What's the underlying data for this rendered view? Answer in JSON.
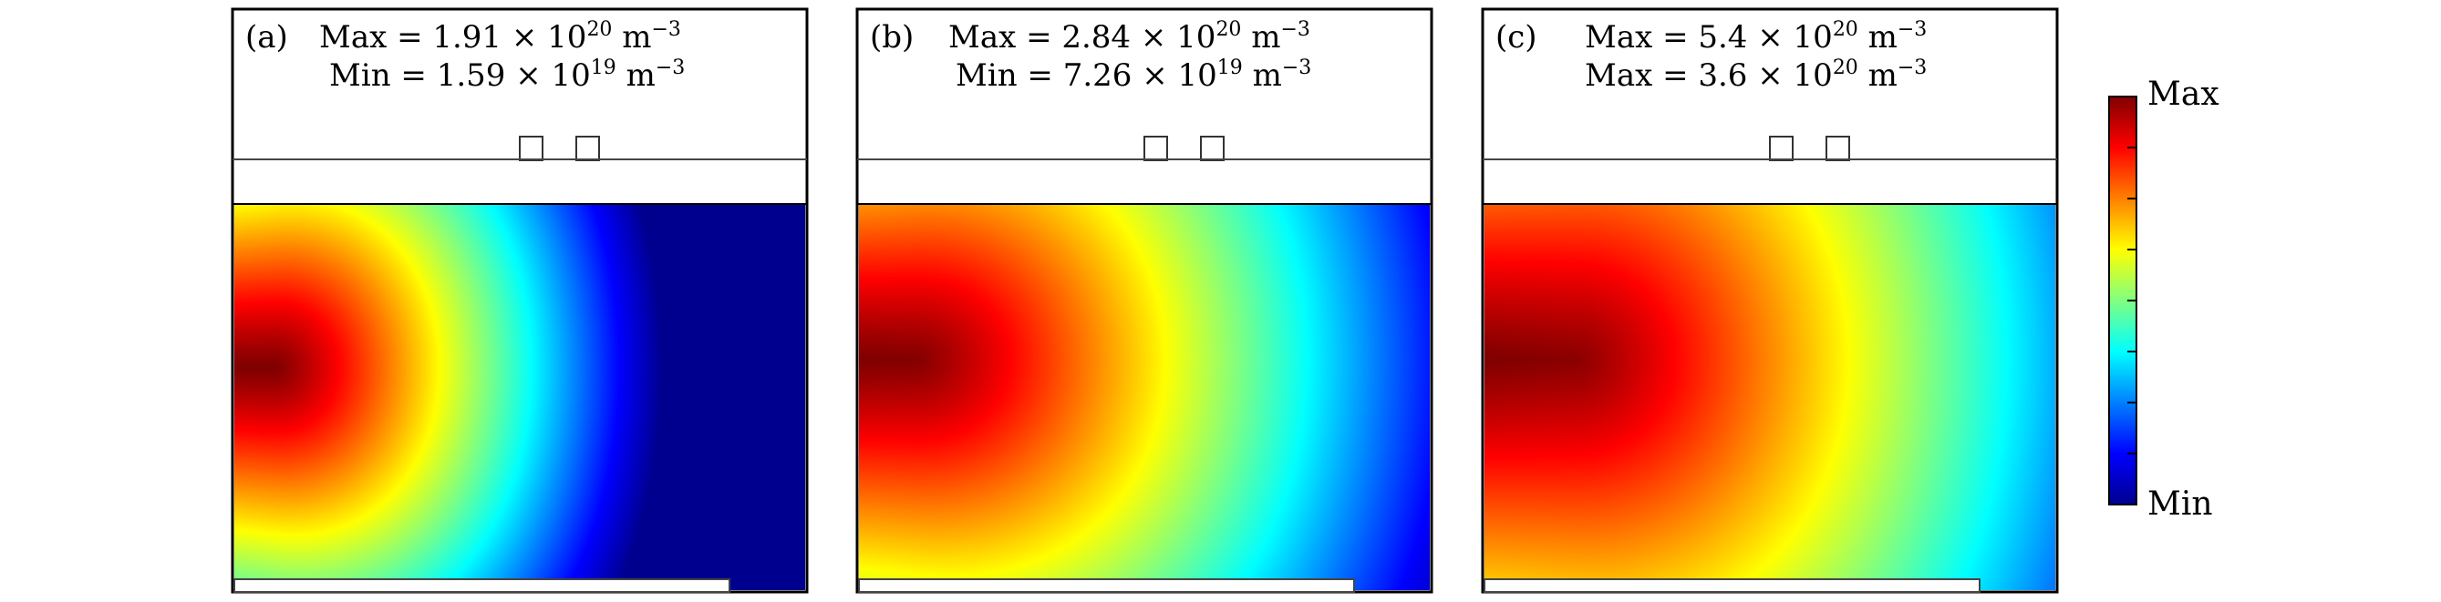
{
  "panels": [
    {
      "label": "(a)",
      "line1": {
        "prefix": "Max = 1.91 × 10",
        "exp": "20",
        "unit": "m",
        "unit_exp": "−3"
      },
      "line2": {
        "prefix": "Min = 1.59 × 10",
        "exp": "19",
        "unit": "m",
        "unit_exp": "−3"
      },
      "field": {
        "center_y": 0.42,
        "core_x": 0.07,
        "front_x": 0.47,
        "falloff": 1.0
      }
    },
    {
      "label": "(b)",
      "line1": {
        "prefix": "Max = 2.84 × 10",
        "exp": "20",
        "unit": "m",
        "unit_exp": "−3"
      },
      "line2": {
        "prefix": "Min = 7.26 × 10",
        "exp": "19",
        "unit": "m",
        "unit_exp": "−3"
      },
      "field": {
        "center_y": 0.4,
        "core_x": 0.1,
        "front_x": 0.66,
        "falloff": 0.75
      }
    },
    {
      "label": "(c)",
      "line1": {
        "prefix": "Max = 5.4 × 10",
        "exp": "20",
        "unit": "m",
        "unit_exp": "−3"
      },
      "line2": {
        "prefix": "Max = 3.6 × 10",
        "exp": "20",
        "unit": "m",
        "unit_exp": "−3"
      },
      "field": {
        "center_y": 0.4,
        "core_x": 0.16,
        "front_x": 0.68,
        "falloff": 0.6
      }
    }
  ],
  "colorbar": {
    "max_label": "Max",
    "min_label": "Min",
    "colormap": [
      "#00008f",
      "#0000ff",
      "#0080ff",
      "#00ffff",
      "#80ff80",
      "#ffff00",
      "#ff8000",
      "#ff0000",
      "#800000"
    ]
  }
}
